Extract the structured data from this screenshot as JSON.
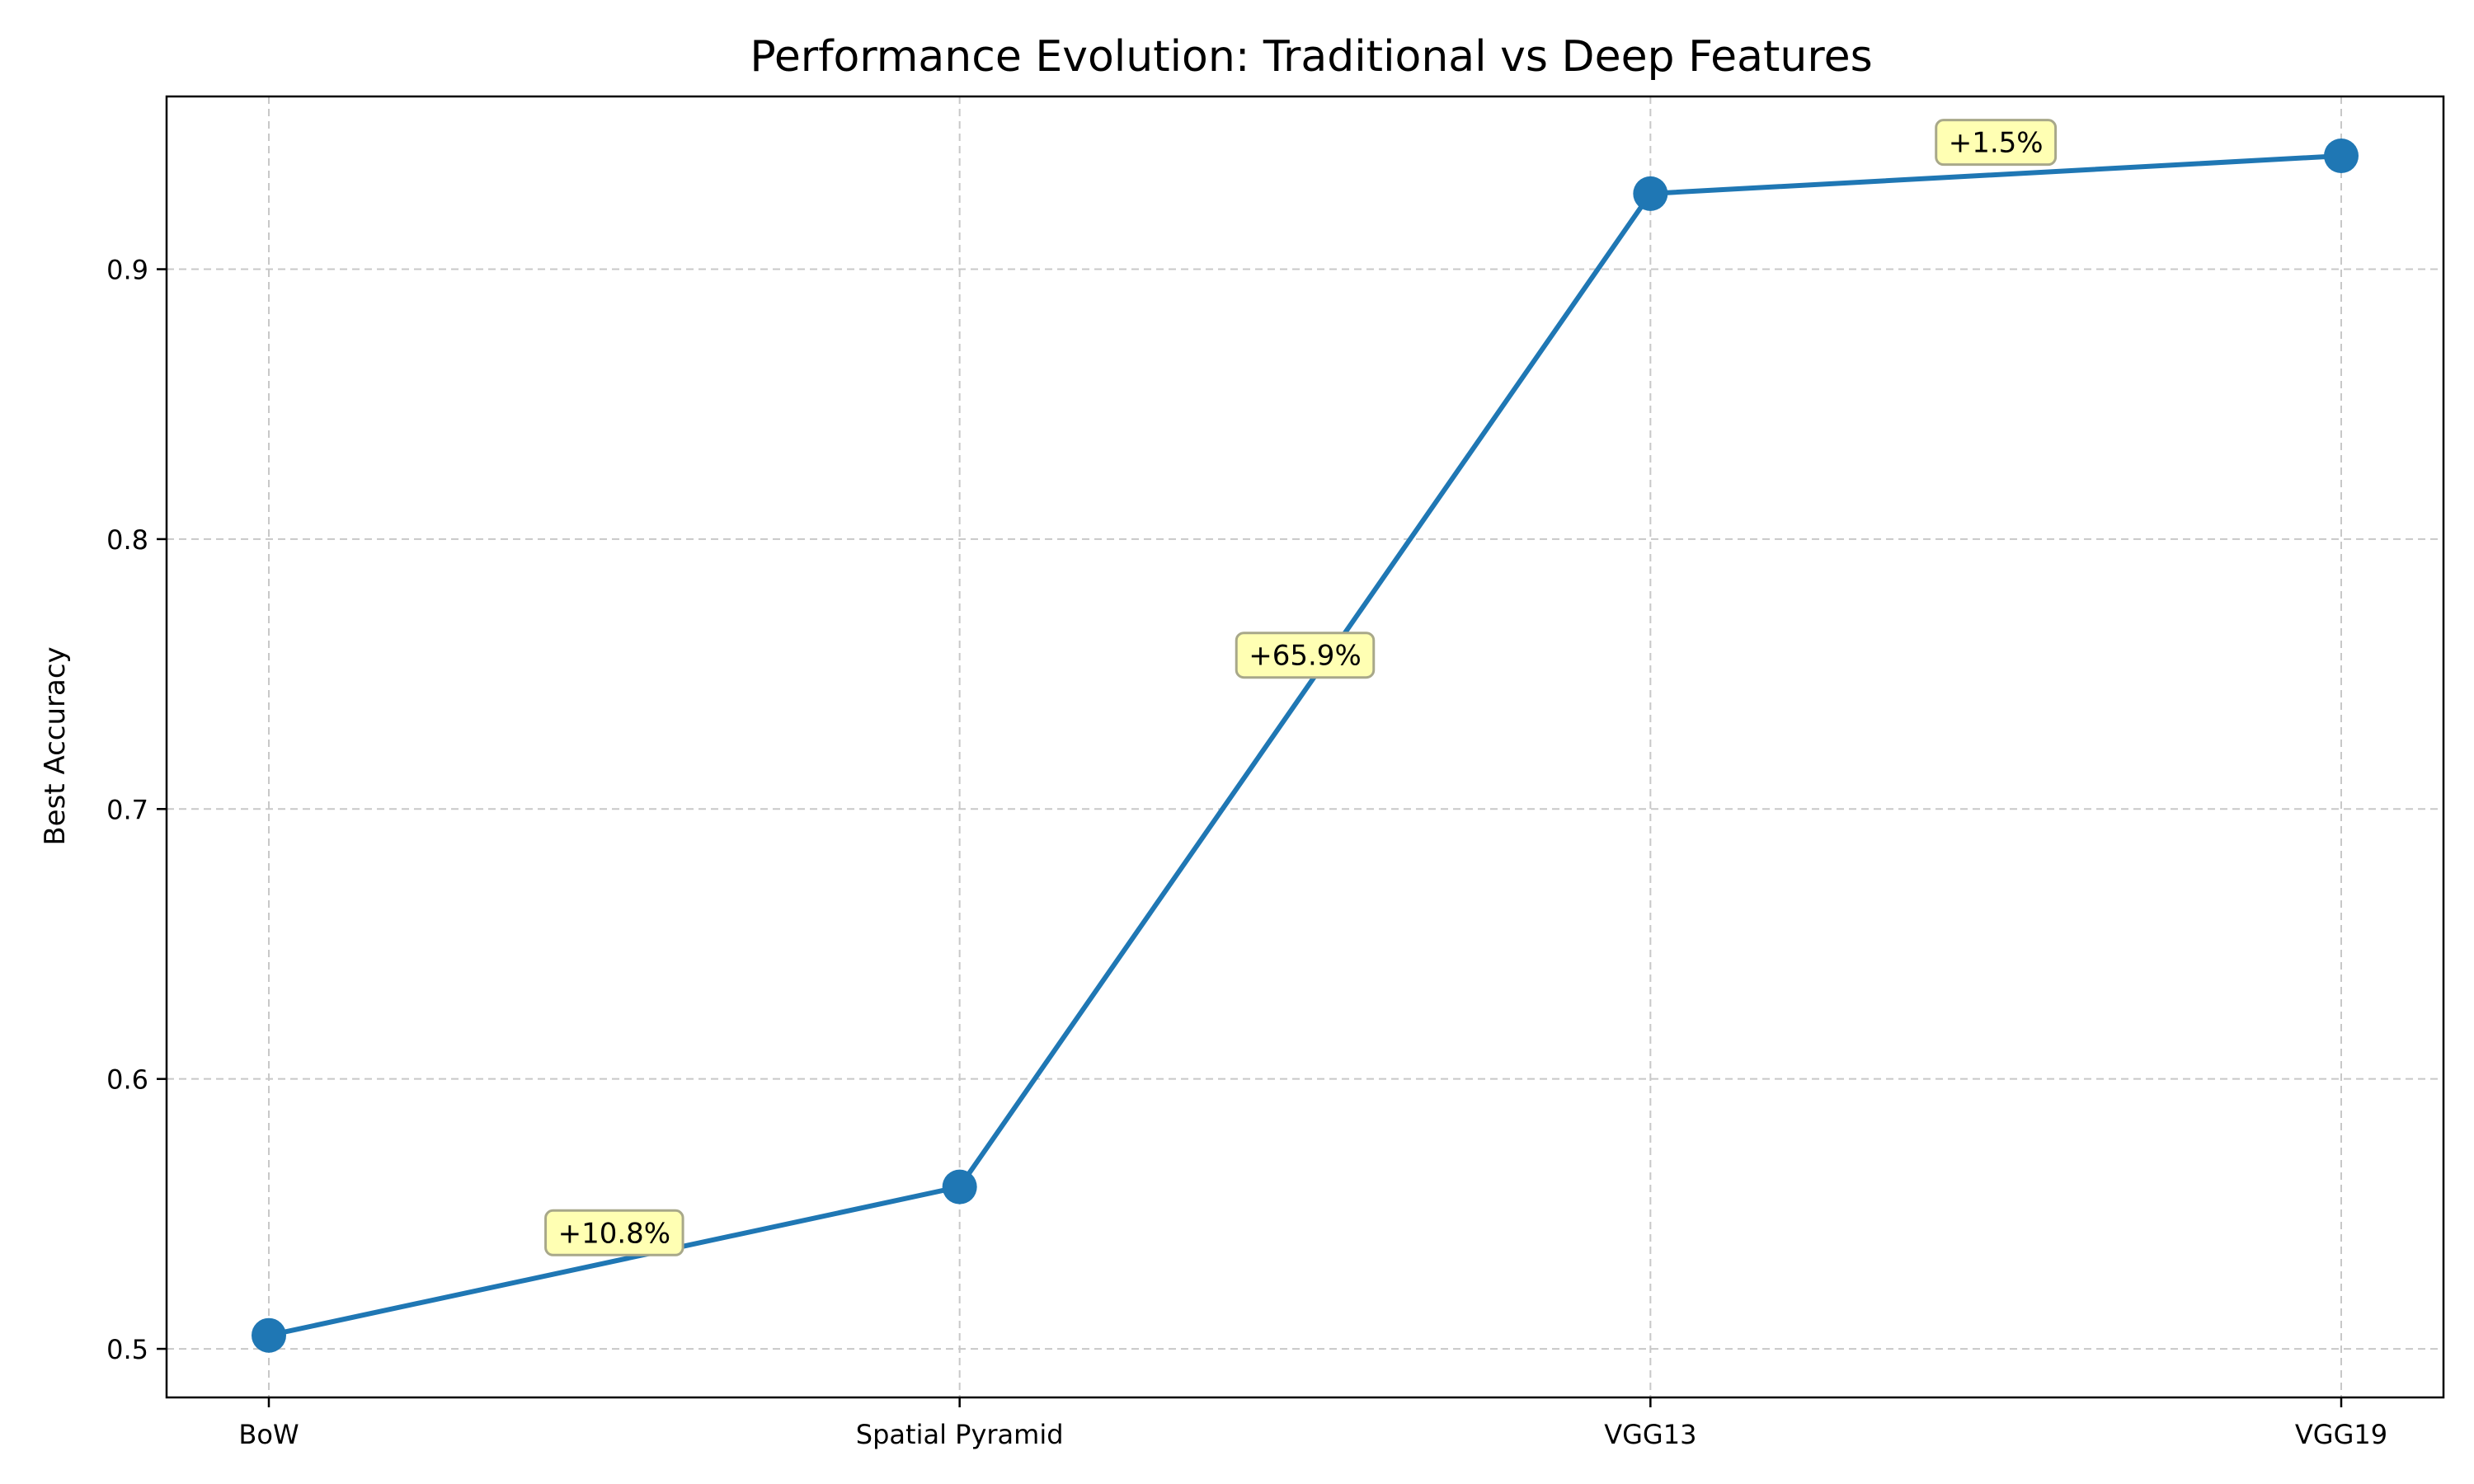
{
  "chart_data": {
    "type": "line",
    "title": "Performance Evolution: Traditional vs Deep Features",
    "xlabel": "",
    "ylabel": "Best Accuracy",
    "categories": [
      "BoW",
      "Spatial Pyramid",
      "VGG13",
      "VGG19"
    ],
    "series": [
      {
        "values": [
          0.505,
          0.56,
          0.928,
          0.942
        ]
      }
    ],
    "ylim": [
      0.482,
      0.964
    ],
    "yticks": [
      0.5,
      0.6,
      0.7,
      0.8,
      0.9
    ],
    "ytick_labels": [
      "0.5",
      "0.6",
      "0.7",
      "0.8",
      "0.9"
    ],
    "grid": true,
    "annotations": [
      {
        "text": "+10.8%",
        "x": 0.5,
        "y": 0.543
      },
      {
        "text": "+65.9%",
        "x": 1.5,
        "y": 0.757
      },
      {
        "text": "+1.5%",
        "x": 2.5,
        "y": 0.947
      }
    ],
    "colors": {
      "line": "#1f77b4",
      "annotation_fill": "#ffffb3",
      "annotation_border": "#a8a88a",
      "grid": "#c8c8c8"
    }
  }
}
